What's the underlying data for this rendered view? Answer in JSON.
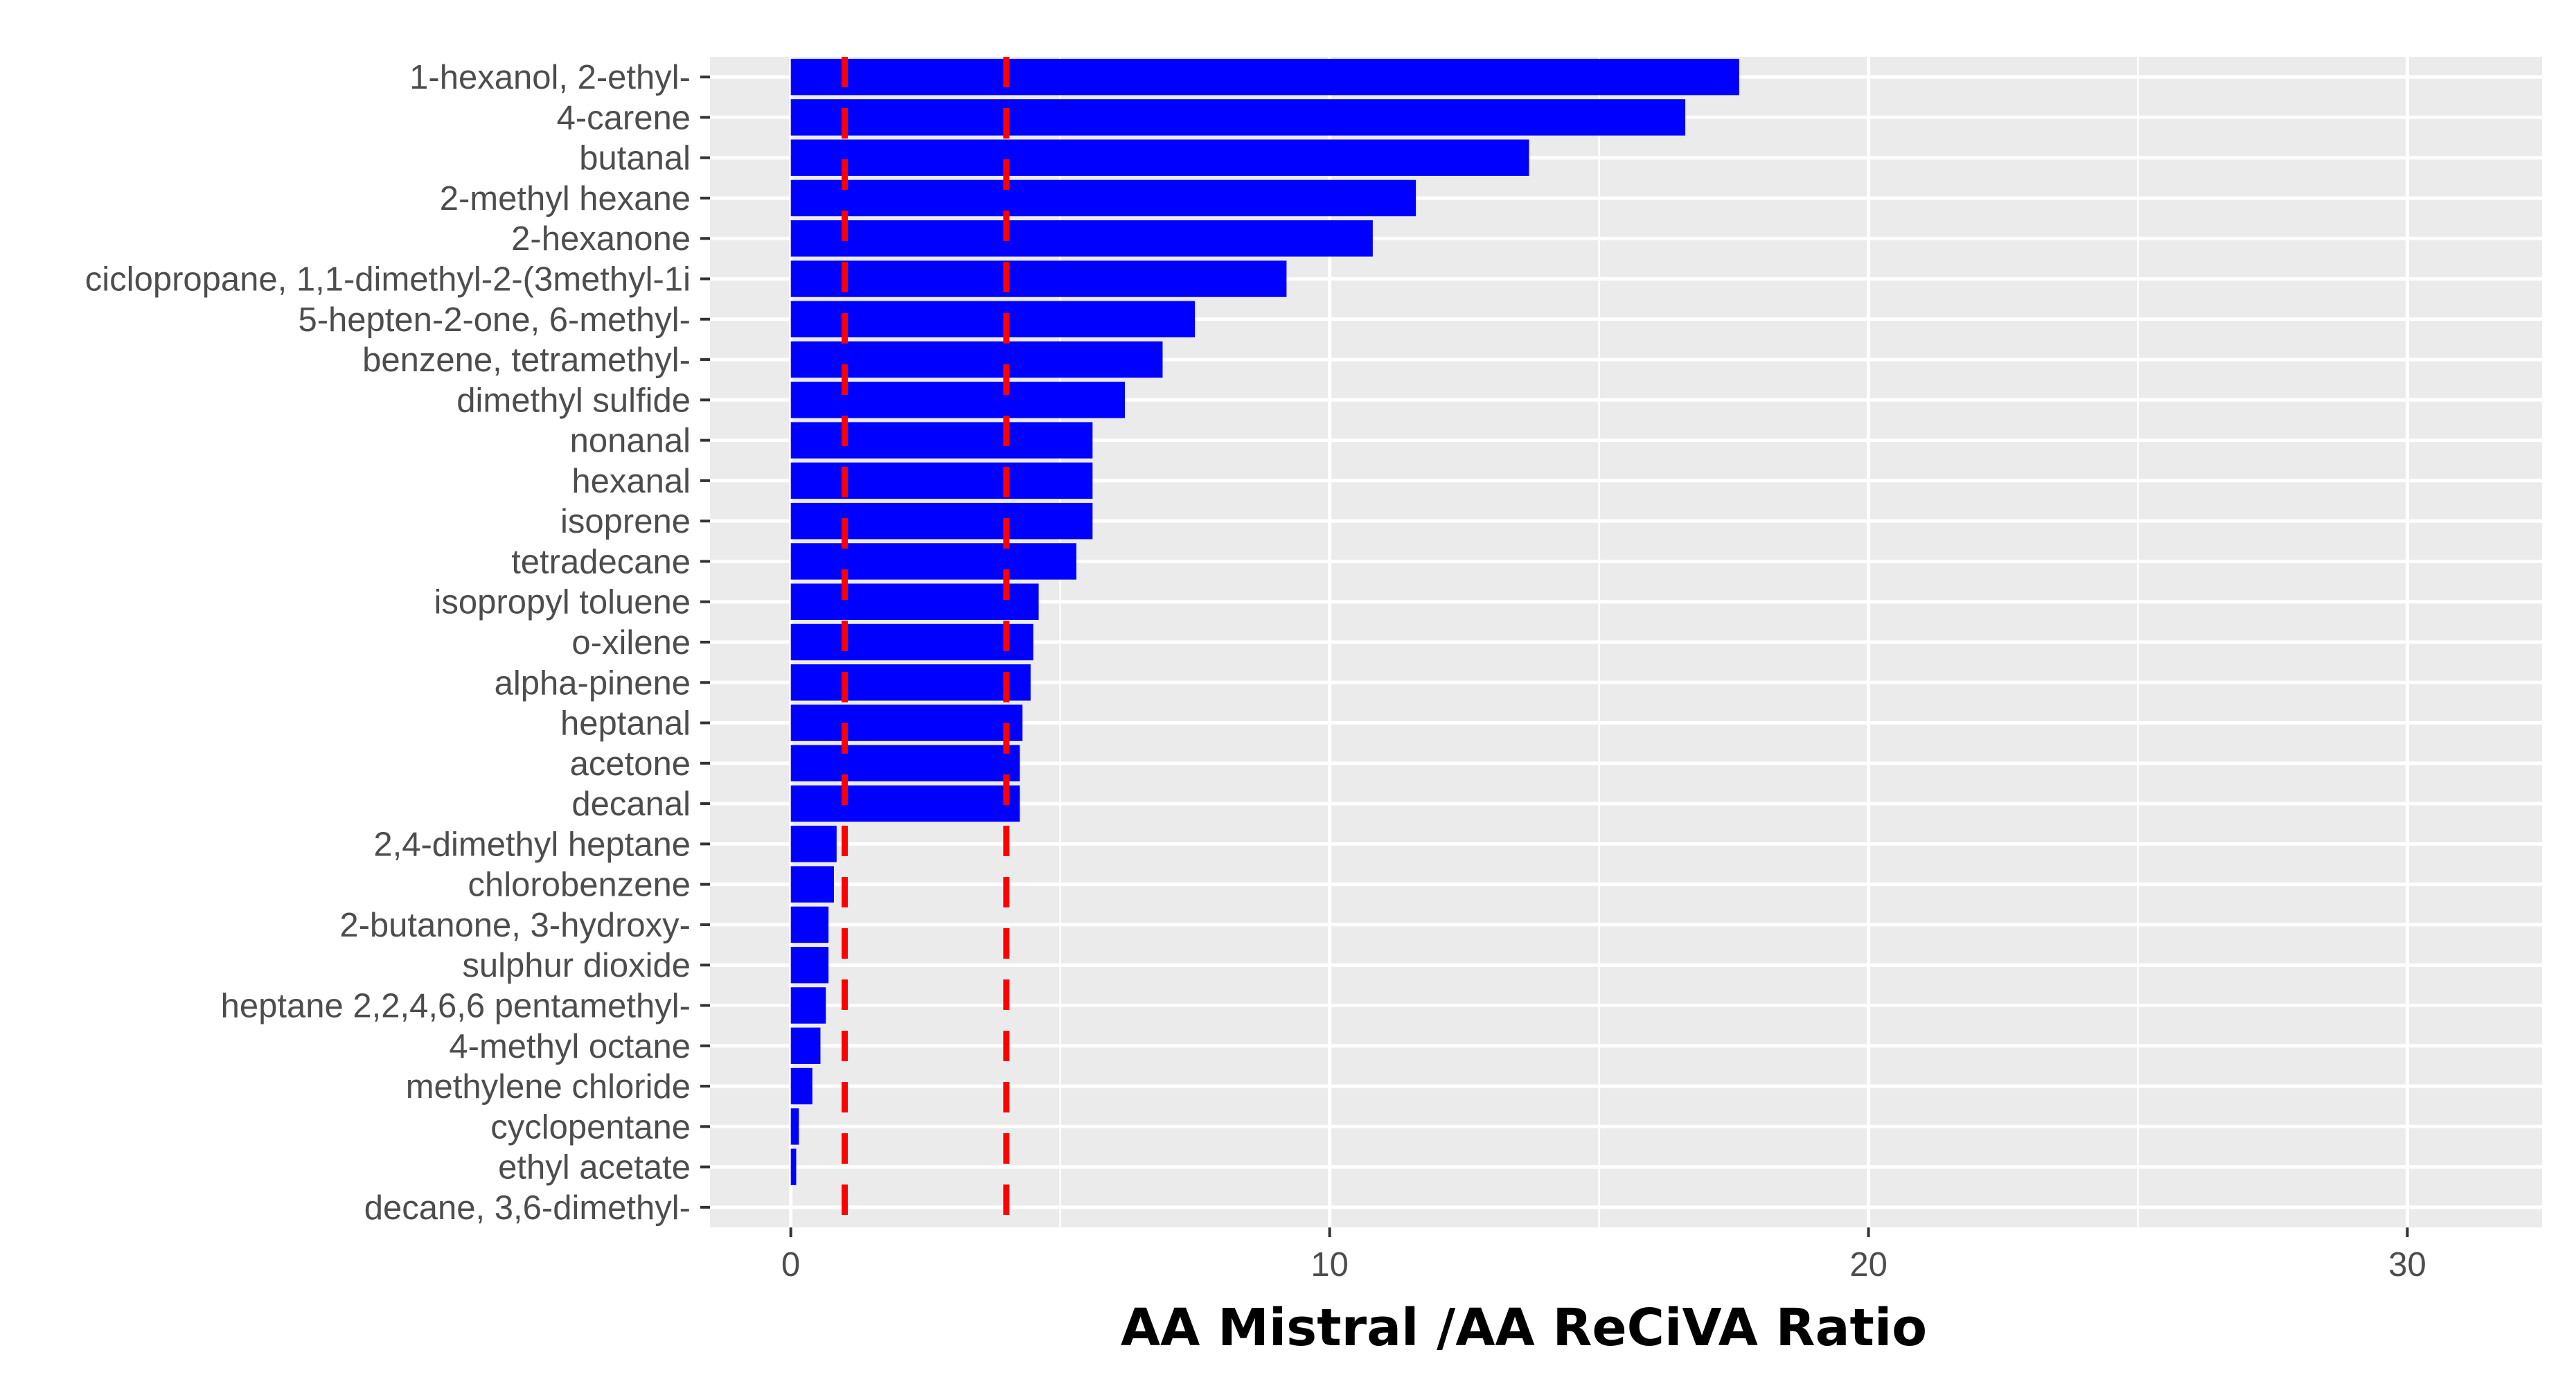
{
  "chart_data": {
    "type": "bar",
    "orientation": "horizontal",
    "categories": [
      "1-hexanol, 2-ethyl-",
      "4-carene",
      "butanal",
      "2-methyl hexane",
      "2-hexanone",
      "ciclopropane, 1,1-dimethyl-2-(3methyl-1i",
      "5-hepten-2-one, 6-methyl-",
      "benzene, tetramethyl-",
      "dimethyl sulfide",
      "nonanal",
      "hexanal",
      "isoprene",
      "tetradecane",
      "isopropyl toluene",
      "o-xilene",
      "alpha-pinene",
      "heptanal",
      "acetone",
      "decanal",
      "2,4-dimethyl heptane",
      "chlorobenzene",
      "2-butanone, 3-hydroxy-",
      "sulphur dioxide",
      "heptane 2,2,4,6,6 pentamethyl-",
      "4-methyl octane",
      "methylene chloride",
      "cyclopentane",
      "ethyl acetate",
      "decane, 3,6-dimethyl-"
    ],
    "values": [
      17.6,
      16.6,
      13.7,
      11.6,
      10.8,
      9.2,
      7.5,
      6.9,
      6.2,
      5.6,
      5.6,
      5.6,
      5.3,
      4.6,
      4.5,
      4.45,
      4.3,
      4.25,
      4.25,
      0.85,
      0.8,
      0.7,
      0.7,
      0.65,
      0.55,
      0.4,
      0.15,
      0.1,
      0.0
    ],
    "bar_color": "#0000ff",
    "reference_lines": [
      {
        "value": 1,
        "style": "dashed",
        "color": "#ff0000"
      },
      {
        "value": 4,
        "style": "dashed",
        "color": "#ff0000"
      }
    ],
    "xlabel": "AA Mistral /AA ReCiVA  Ratio",
    "ylabel": "",
    "title": "",
    "xlim": [
      -1.5,
      32.5
    ],
    "xticks": [
      0,
      10,
      20,
      30
    ],
    "xtick_labels": [
      "0",
      "10",
      "20",
      "30"
    ],
    "grid": true,
    "panel_background": "#ebebeb",
    "grid_color": "#ffffff",
    "legend": "none"
  }
}
